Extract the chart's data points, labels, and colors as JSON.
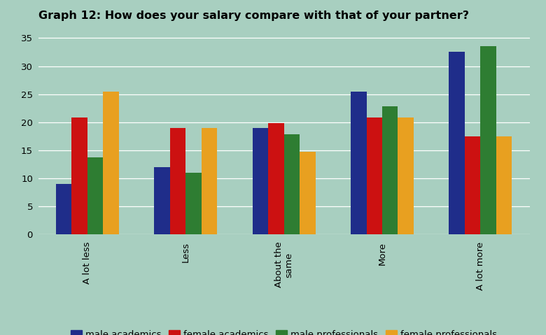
{
  "title": "Graph 12: How does your salary compare with that of your partner?",
  "categories": [
    "A lot less",
    "Less",
    "About the\nsame",
    "More",
    "A lot more"
  ],
  "series": {
    "male academics": [
      9,
      12,
      19,
      25.5,
      32.5
    ],
    "female academics": [
      20.8,
      19,
      19.8,
      20.8,
      17.5
    ],
    "male professionals": [
      13.8,
      11,
      17.8,
      22.8,
      33.5
    ],
    "female professionals": [
      25.5,
      19,
      14.8,
      20.8,
      17.5
    ]
  },
  "colors": {
    "male academics": "#1f2d8a",
    "female academics": "#cc1111",
    "male professionals": "#2e7d32",
    "female professionals": "#e8a020"
  },
  "legend_order": [
    "male academics",
    "female academics",
    "male professionals",
    "female professionals"
  ],
  "ylim": [
    0,
    37
  ],
  "yticks": [
    0,
    5,
    10,
    15,
    20,
    25,
    30,
    35
  ],
  "background_color": "#a8cfc0",
  "grid_color": "#ffffff",
  "title_fontsize": 11.5,
  "tick_fontsize": 9.5,
  "legend_fontsize": 9.5,
  "bar_width": 0.16
}
